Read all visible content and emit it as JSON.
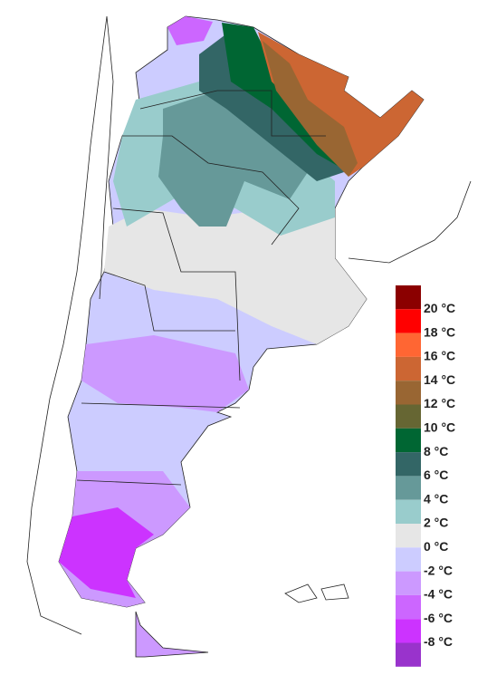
{
  "legend": {
    "colors": [
      "#8b0000",
      "#ff0000",
      "#ff6633",
      "#cc6633",
      "#996633",
      "#666633",
      "#006633",
      "#336666",
      "#669999",
      "#99cccc",
      "#e6e6e6",
      "#ccccff",
      "#cc99ff",
      "#cc66ff",
      "#cc33ff",
      "#9933cc"
    ],
    "labels": [
      "20 °C",
      "18 °C",
      "16 °C",
      "14 °C",
      "12 °C",
      "10 °C",
      "8 °C",
      "6 °C",
      "4 °C",
      "2 °C",
      "0 °C",
      "-2 °C",
      "-4 °C",
      "-6 °C",
      "-8 °C"
    ]
  }
}
